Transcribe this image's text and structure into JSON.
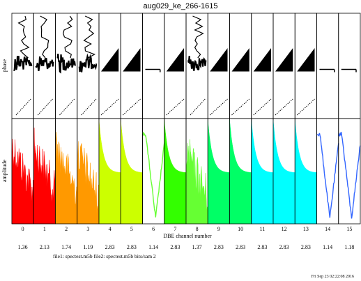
{
  "chart_data": {
    "type": "line",
    "title": "aug029_ke_266-1615",
    "ylabel_top": "phase",
    "ylabel_bottom": "amplitude",
    "xlabel": "DBE channel number",
    "footnote": "file1: spectest.m5b file2: spectest.m5b bits/sam 2",
    "timestamp": "Fri Sep 23 02:22:08 2016",
    "channels": [
      {
        "label": "0",
        "value": "1.36",
        "color": "#ff0000",
        "amp_style": "noise",
        "phase_style": "noisy"
      },
      {
        "label": "1",
        "value": "2.13",
        "color": "#ff0000",
        "amp_style": "noise",
        "phase_style": "noisy"
      },
      {
        "label": "2",
        "value": "1.74",
        "color": "#ff9900",
        "amp_style": "noise",
        "phase_style": "noisy"
      },
      {
        "label": "3",
        "value": "1.19",
        "color": "#ff9900",
        "amp_style": "spiky",
        "phase_style": "noisy"
      },
      {
        "label": "4",
        "value": "2.83",
        "color": "#ccff00",
        "amp_style": "fill",
        "phase_style": "wedge"
      },
      {
        "label": "5",
        "value": "2.83",
        "color": "#ccff00",
        "amp_style": "fill",
        "phase_style": "wedge"
      },
      {
        "label": "6",
        "value": "1.14",
        "color": "#66ff33",
        "amp_style": "line",
        "phase_style": "flat"
      },
      {
        "label": "7",
        "value": "2.83",
        "color": "#33ff00",
        "amp_style": "fill",
        "phase_style": "wedge"
      },
      {
        "label": "8",
        "value": "1.37",
        "color": "#66ff33",
        "amp_style": "spiky",
        "phase_style": "noisy"
      },
      {
        "label": "9",
        "value": "2.83",
        "color": "#00ff66",
        "amp_style": "fill",
        "phase_style": "wedge"
      },
      {
        "label": "10",
        "value": "2.83",
        "color": "#00ff66",
        "amp_style": "fill",
        "phase_style": "wedge"
      },
      {
        "label": "11",
        "value": "2.83",
        "color": "#00ffff",
        "amp_style": "fill",
        "phase_style": "wedge"
      },
      {
        "label": "12",
        "value": "2.83",
        "color": "#00ffff",
        "amp_style": "fill",
        "phase_style": "wedge"
      },
      {
        "label": "13",
        "value": "2.83",
        "color": "#00ffff",
        "amp_style": "fill",
        "phase_style": "wedge"
      },
      {
        "label": "14",
        "value": "1.14",
        "color": "#3366ff",
        "amp_style": "line",
        "phase_style": "flat"
      },
      {
        "label": "15",
        "value": "1.18",
        "color": "#3366ff",
        "amp_style": "line",
        "phase_style": "flat"
      }
    ]
  }
}
